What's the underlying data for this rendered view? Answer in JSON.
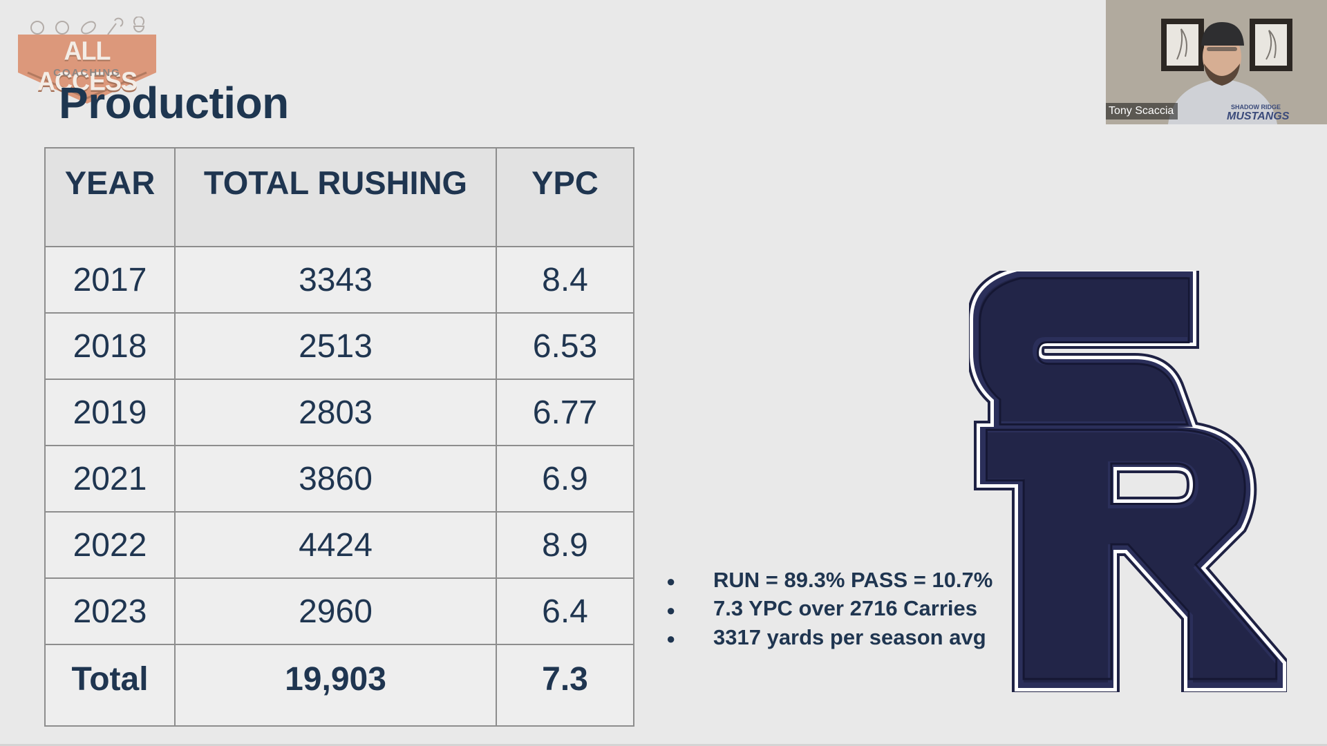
{
  "brand": {
    "name": "ALL ACCESS",
    "subtitle": "COACHING"
  },
  "slide": {
    "title": "Production"
  },
  "table": {
    "headers": [
      "YEAR",
      "TOTAL RUSHING",
      "YPC"
    ],
    "rows": [
      [
        "2017",
        "3343",
        "8.4"
      ],
      [
        "2018",
        "2513",
        "6.53"
      ],
      [
        "2019",
        "2803",
        "6.77"
      ],
      [
        "2021",
        "3860",
        "6.9"
      ],
      [
        "2022",
        "4424",
        "8.9"
      ],
      [
        "2023",
        "2960",
        "6.4"
      ]
    ],
    "total": [
      "Total",
      "19,903",
      "7.3"
    ]
  },
  "highlights": {
    "bullet": "●",
    "items": [
      "RUN = 89.3% PASS = 10.7%",
      "7.3 YPC over 2716 Carries",
      "3317 yards per season avg"
    ]
  },
  "team_logo": {
    "letters": "SR",
    "fill_color": "#222548",
    "outline_color": "#ffffff"
  },
  "video": {
    "participant_name": "Tony Scaccia",
    "shirt_text_1": "SHADOW RIDGE",
    "shirt_text_2": "MUSTANGS"
  },
  "colors": {
    "title": "#1e3650",
    "logo_orange": "#d98a67",
    "background": "#e9e9e9"
  }
}
